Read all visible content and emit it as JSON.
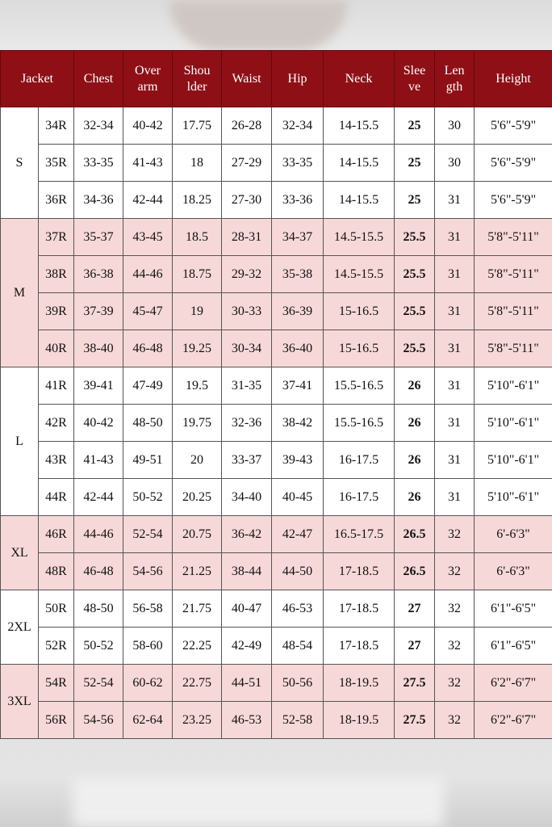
{
  "header": [
    "Jacket",
    "Chest",
    "Over arm",
    "Shou lder",
    "Waist",
    "Hip",
    "Neck",
    "Slee ve",
    "Len gth",
    "Height"
  ],
  "groups": [
    {
      "size": "S",
      "shade": "white",
      "rows": [
        [
          "34R",
          "32-34",
          "40-42",
          "17.75",
          "26-28",
          "32-34",
          "14-15.5",
          "25",
          "30",
          "5'6\"-5'9\""
        ],
        [
          "35R",
          "33-35",
          "41-43",
          "18",
          "27-29",
          "33-35",
          "14-15.5",
          "25",
          "30",
          "5'6\"-5'9\""
        ],
        [
          "36R",
          "34-36",
          "42-44",
          "18.25",
          "27-30",
          "33-36",
          "14-15.5",
          "25",
          "31",
          "5'6\"-5'9\""
        ]
      ]
    },
    {
      "size": "M",
      "shade": "pink",
      "rows": [
        [
          "37R",
          "35-37",
          "43-45",
          "18.5",
          "28-31",
          "34-37",
          "14.5-15.5",
          "25.5",
          "31",
          "5'8\"-5'11\""
        ],
        [
          "38R",
          "36-38",
          "44-46",
          "18.75",
          "29-32",
          "35-38",
          "14.5-15.5",
          "25.5",
          "31",
          "5'8\"-5'11\""
        ],
        [
          "39R",
          "37-39",
          "45-47",
          "19",
          "30-33",
          "36-39",
          "15-16.5",
          "25.5",
          "31",
          "5'8\"-5'11\""
        ],
        [
          "40R",
          "38-40",
          "46-48",
          "19.25",
          "30-34",
          "36-40",
          "15-16.5",
          "25.5",
          "31",
          "5'8\"-5'11\""
        ]
      ]
    },
    {
      "size": "L",
      "shade": "white",
      "rows": [
        [
          "41R",
          "39-41",
          "47-49",
          "19.5",
          "31-35",
          "37-41",
          "15.5-16.5",
          "26",
          "31",
          "5'10\"-6'1\""
        ],
        [
          "42R",
          "40-42",
          "48-50",
          "19.75",
          "32-36",
          "38-42",
          "15.5-16.5",
          "26",
          "31",
          "5'10\"-6'1\""
        ],
        [
          "43R",
          "41-43",
          "49-51",
          "20",
          "33-37",
          "39-43",
          "16-17.5",
          "26",
          "31",
          "5'10\"-6'1\""
        ],
        [
          "44R",
          "42-44",
          "50-52",
          "20.25",
          "34-40",
          "40-45",
          "16-17.5",
          "26",
          "31",
          "5'10\"-6'1\""
        ]
      ]
    },
    {
      "size": "XL",
      "shade": "pink",
      "rows": [
        [
          "46R",
          "44-46",
          "52-54",
          "20.75",
          "36-42",
          "42-47",
          "16.5-17.5",
          "26.5",
          "32",
          "6'-6'3\""
        ],
        [
          "48R",
          "46-48",
          "54-56",
          "21.25",
          "38-44",
          "44-50",
          "17-18.5",
          "26.5",
          "32",
          "6'-6'3\""
        ]
      ]
    },
    {
      "size": "2XL",
      "shade": "white",
      "rows": [
        [
          "50R",
          "48-50",
          "56-58",
          "21.75",
          "40-47",
          "46-53",
          "17-18.5",
          "27",
          "32",
          "6'1\"-6'5\""
        ],
        [
          "52R",
          "50-52",
          "58-60",
          "22.25",
          "42-49",
          "48-54",
          "17-18.5",
          "27",
          "32",
          "6'1\"-6'5\""
        ]
      ]
    },
    {
      "size": "3XL",
      "shade": "pink",
      "rows": [
        [
          "54R",
          "52-54",
          "60-62",
          "22.75",
          "44-51",
          "50-56",
          "18-19.5",
          "27.5",
          "32",
          "6'2\"-6'7\""
        ],
        [
          "56R",
          "54-56",
          "62-64",
          "23.25",
          "46-53",
          "52-58",
          "18-19.5",
          "27.5",
          "32",
          "6'2\"-6'7\""
        ]
      ]
    }
  ],
  "colors": {
    "header": "#8e1016",
    "pink_row": "#f7d8d8",
    "white_row": "#ffffff"
  }
}
